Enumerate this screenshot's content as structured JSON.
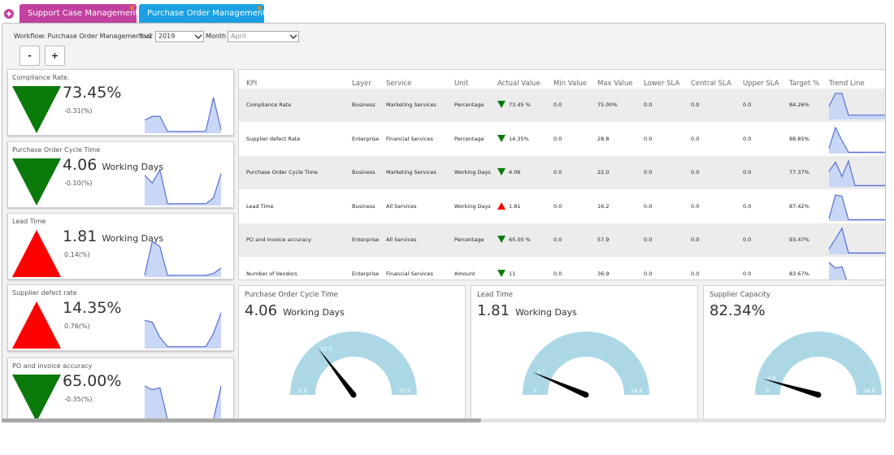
{
  "tabs": [
    {
      "label": "Support Case Management",
      "color": "#c2409f"
    },
    {
      "label": "Purchase Order Management",
      "color": "#1ba1e2"
    }
  ],
  "filters": {
    "workflow": "Workflow: Purchase Order Management v1",
    "year_label": "Year",
    "year": "2019",
    "month_label": "Month",
    "month": "April"
  },
  "zoom_buttons": [
    "-",
    "+"
  ],
  "trend_colors": {
    "down": "#0a7a0a",
    "up": "#ff0000"
  },
  "sparkline_style": {
    "line": "#5a6fd6",
    "fill": "#c8d7f6"
  },
  "kpi_cards": [
    {
      "title": "Compliance Rate.",
      "value": "73.45%",
      "change": "-0.31(%)",
      "trend": "down",
      "sparkline": [
        35,
        45,
        45,
        5,
        5,
        5,
        5,
        5,
        5,
        95,
        10
      ]
    },
    {
      "title": "Purchase Order Cycle Time",
      "value": "4.06",
      "unit": "Working Days",
      "change": "-0.10(%)",
      "trend": "down",
      "sparkline": [
        80,
        60,
        95,
        5,
        5,
        5,
        5,
        5,
        5,
        20,
        85
      ]
    },
    {
      "title": "Lead Time",
      "value": "1.81",
      "unit": "Working Days",
      "change": "0.14(%)",
      "trend": "up",
      "sparkline": [
        5,
        100,
        85,
        5,
        5,
        5,
        5,
        5,
        5,
        10,
        25
      ]
    },
    {
      "title": "Supplier defect rate",
      "value": "14.35%",
      "change": "0.76(%)",
      "trend": "up",
      "sparkline": [
        75,
        70,
        30,
        5,
        5,
        5,
        5,
        5,
        5,
        40,
        95
      ]
    },
    {
      "title": "PO and invoice accuracy",
      "value": "65.00%",
      "change": "-0.35(%)",
      "trend": "down",
      "sparkline": [
        95,
        85,
        90,
        5,
        5,
        5,
        5,
        5,
        5,
        5,
        95
      ]
    }
  ],
  "table": {
    "columns": [
      "KPI",
      "Layer",
      "Service",
      "Unit",
      "Actual Value",
      "Min Value",
      "Max Value",
      "Lower SLA",
      "Central SLA",
      "Upper SLA",
      "Target %",
      "Trend Line"
    ],
    "rows": [
      {
        "cells": [
          "Compliance Rate",
          "Business",
          "Marketing Services",
          "Percentage",
          "73.45 %",
          "0.0",
          "75.00%",
          "0.0",
          "0.0",
          "0.0",
          "84.26%"
        ],
        "trend": "down",
        "sparkline": [
          30,
          60,
          60,
          10,
          10,
          10,
          10,
          10,
          10,
          10
        ]
      },
      {
        "cells": [
          "Supplier defect Rate",
          "Enterprise",
          "Financial Services",
          "Percentage",
          "14.35%",
          "0.0",
          "28.8",
          "0.0",
          "0.0",
          "0.0",
          "88.85%"
        ],
        "trend": "down",
        "sparkline": [
          20,
          100,
          50,
          5,
          5,
          5,
          5,
          5,
          5,
          5
        ]
      },
      {
        "cells": [
          "Purchase Order Cycle Time",
          "Business",
          "Marketing Services",
          "Working Days",
          "4.06",
          "0.0",
          "22.0",
          "0.0",
          "0.0",
          "0.0",
          "77.37%"
        ],
        "trend": "down",
        "sparkline": [
          60,
          95,
          40,
          100,
          5,
          5,
          5,
          5,
          5,
          5
        ]
      },
      {
        "cells": [
          "Lead Time",
          "Business",
          "All Services",
          "Working Days",
          "1.81",
          "0.0",
          "16.2",
          "0.0",
          "0.0",
          "0.0",
          "87.42%"
        ],
        "trend": "up",
        "sparkline": [
          10,
          100,
          95,
          5,
          5,
          5,
          5,
          5,
          5,
          5
        ]
      },
      {
        "cells": [
          "PO and invoice accuracy",
          "Enterprise",
          "All Services",
          "Percentage",
          "65.00 %",
          "0.0",
          "57.9",
          "0.0",
          "0.0",
          "0.0",
          "93.47%"
        ],
        "trend": "down",
        "sparkline": [
          20,
          60,
          100,
          5,
          5,
          5,
          5,
          5,
          5,
          5
        ]
      },
      {
        "cells": [
          "Number of Vendors",
          "Enterprise",
          "Financial Services",
          "Amount",
          "11",
          "0.0",
          "36.9",
          "0.0",
          "0.0",
          "0.0",
          "83.67%"
        ],
        "trend": "down",
        "sparkline": [
          90,
          70,
          75,
          10,
          10,
          10,
          10,
          10,
          10,
          10
        ]
      }
    ]
  },
  "gauges": [
    {
      "title": "Purchase Order Cycle Time",
      "value": "4.06",
      "unit": "Working Days",
      "min": {
        "value": 0,
        "label": "0.0"
      },
      "max": {
        "value": 75.1,
        "label": "75.1"
      },
      "needle": {
        "value": 22,
        "label": "22.0"
      }
    },
    {
      "title": "Lead Time",
      "value": "1.81",
      "unit": "Working Days",
      "min": {
        "value": 0,
        "label": "0"
      },
      "max": {
        "value": 28.8,
        "label": "28.8"
      },
      "needle": {
        "value": 3.7,
        "label": "3.7"
      }
    },
    {
      "title": "Supplier Capacity",
      "value": "82.34%",
      "min": {
        "value": 0,
        "label": "0"
      },
      "max": {
        "value": 28.8,
        "label": "28.8"
      },
      "needle": {
        "value": 2.6,
        "label": "2.6"
      }
    }
  ]
}
